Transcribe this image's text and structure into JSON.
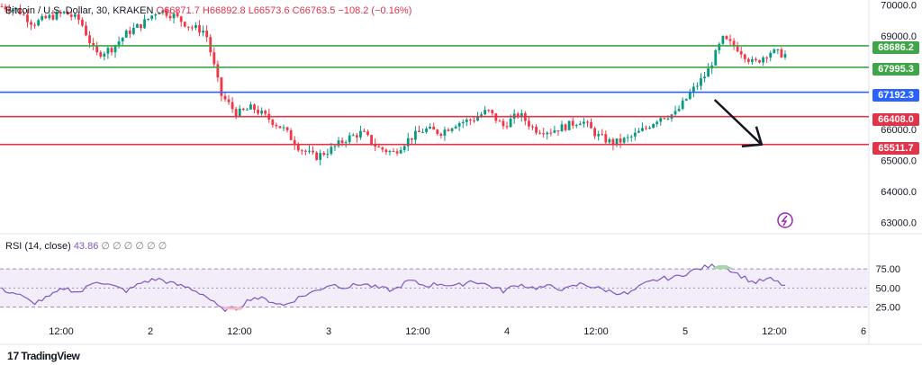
{
  "header": {
    "symbol": "Bitcoin / U.S. Dollar, 30, KRAKEN",
    "open": "O66871.7",
    "high": "H66892.8",
    "low": "L66573.6",
    "close": "C66763.5",
    "change": "−108.2 (−0.16%)"
  },
  "rsi": {
    "label": "RSI (14, close)",
    "value": "43.86",
    "placeholders": "∅ ∅ ∅ ∅ ∅ ∅"
  },
  "levels": [
    {
      "price": "68686.2",
      "color": "#3fa548"
    },
    {
      "price": "67995.3",
      "color": "#3fa548"
    },
    {
      "price": "67192.3",
      "color": "#2962ff"
    },
    {
      "price": "66408.0",
      "color": "#e0344b"
    },
    {
      "price": "65511.7",
      "color": "#e0344b"
    }
  ],
  "colors": {
    "up": "#089981",
    "down": "#f23645",
    "rsi_line": "#7e57c2",
    "rsi_band": "#ede7f6"
  },
  "footer": {
    "brand": "TradingView",
    "logo_icon": "tradingview-logo-icon"
  },
  "flash_icon": "lightning-icon",
  "chart_data": {
    "type": "candlestick",
    "price_axis": {
      "ticks": [
        "70000.0",
        "69000.0",
        "68000.0",
        "67000.0",
        "66000.0",
        "65000.0",
        "64000.0",
        "63000.0"
      ],
      "range": [
        62700,
        70100
      ]
    },
    "rsi_axis": {
      "ticks": [
        "75.00",
        "50.00",
        "25.00"
      ],
      "range": [
        15,
        100
      ]
    },
    "time_axis": [
      "12:00",
      "2",
      "12:00",
      "3",
      "12:00",
      "4",
      "12:00",
      "5",
      "12:00",
      "6"
    ],
    "price_path": [
      [
        0,
        69950
      ],
      [
        0.02,
        69850
      ],
      [
        0.04,
        69400
      ],
      [
        0.06,
        69600
      ],
      [
        0.08,
        69750
      ],
      [
        0.1,
        69500
      ],
      [
        0.12,
        68400
      ],
      [
        0.14,
        68600
      ],
      [
        0.16,
        69100
      ],
      [
        0.18,
        69400
      ],
      [
        0.2,
        69850
      ],
      [
        0.22,
        69650
      ],
      [
        0.24,
        69300
      ],
      [
        0.26,
        69150
      ],
      [
        0.28,
        67100
      ],
      [
        0.3,
        66500
      ],
      [
        0.32,
        66700
      ],
      [
        0.34,
        66350
      ],
      [
        0.36,
        66000
      ],
      [
        0.38,
        65400
      ],
      [
        0.4,
        65100
      ],
      [
        0.42,
        65350
      ],
      [
        0.44,
        65700
      ],
      [
        0.46,
        65900
      ],
      [
        0.48,
        65400
      ],
      [
        0.5,
        65250
      ],
      [
        0.52,
        65700
      ],
      [
        0.54,
        66000
      ],
      [
        0.56,
        65900
      ],
      [
        0.58,
        66200
      ],
      [
        0.6,
        66300
      ],
      [
        0.62,
        66600
      ],
      [
        0.64,
        66100
      ],
      [
        0.66,
        66500
      ],
      [
        0.68,
        66000
      ],
      [
        0.7,
        65950
      ],
      [
        0.72,
        66100
      ],
      [
        0.74,
        66300
      ],
      [
        0.76,
        65800
      ],
      [
        0.78,
        65550
      ],
      [
        0.8,
        65700
      ],
      [
        0.82,
        66000
      ],
      [
        0.84,
        66400
      ],
      [
        0.86,
        66500
      ],
      [
        0.88,
        67200
      ],
      [
        0.9,
        67800
      ],
      [
        0.92,
        68900
      ],
      [
        0.94,
        68600
      ],
      [
        0.96,
        68100
      ],
      [
        0.98,
        68500
      ],
      [
        1,
        68400
      ]
    ],
    "rsi_path": [
      [
        0,
        48
      ],
      [
        0.02,
        42
      ],
      [
        0.04,
        30
      ],
      [
        0.06,
        38
      ],
      [
        0.08,
        50
      ],
      [
        0.1,
        44
      ],
      [
        0.12,
        60
      ],
      [
        0.14,
        53
      ],
      [
        0.16,
        46
      ],
      [
        0.18,
        58
      ],
      [
        0.2,
        62
      ],
      [
        0.22,
        55
      ],
      [
        0.24,
        50
      ],
      [
        0.26,
        40
      ],
      [
        0.28,
        22
      ],
      [
        0.3,
        23
      ],
      [
        0.32,
        38
      ],
      [
        0.34,
        34
      ],
      [
        0.36,
        27
      ],
      [
        0.38,
        38
      ],
      [
        0.4,
        46
      ],
      [
        0.42,
        55
      ],
      [
        0.44,
        51
      ],
      [
        0.46,
        56
      ],
      [
        0.48,
        50
      ],
      [
        0.5,
        47
      ],
      [
        0.52,
        60
      ],
      [
        0.54,
        53
      ],
      [
        0.56,
        56
      ],
      [
        0.58,
        52
      ],
      [
        0.6,
        60
      ],
      [
        0.62,
        54
      ],
      [
        0.64,
        46
      ],
      [
        0.66,
        55
      ],
      [
        0.68,
        50
      ],
      [
        0.7,
        52
      ],
      [
        0.72,
        48
      ],
      [
        0.74,
        56
      ],
      [
        0.76,
        50
      ],
      [
        0.78,
        45
      ],
      [
        0.8,
        42
      ],
      [
        0.82,
        55
      ],
      [
        0.84,
        62
      ],
      [
        0.86,
        64
      ],
      [
        0.88,
        72
      ],
      [
        0.9,
        78
      ],
      [
        0.92,
        80
      ],
      [
        0.94,
        68
      ],
      [
        0.96,
        57
      ],
      [
        0.98,
        62
      ],
      [
        1,
        53
      ]
    ],
    "arrow": {
      "from": [
        0.91,
        66950
      ],
      "to": [
        0.97,
        65510
      ]
    }
  }
}
